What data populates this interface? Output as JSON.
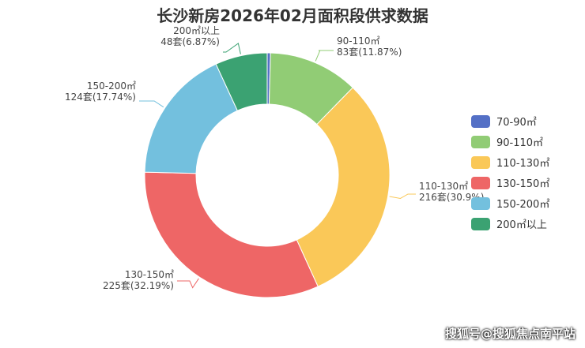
{
  "chart_data": {
    "type": "pie",
    "style": "donut",
    "title": "长沙新房2026年02月面积段供求数据",
    "unit": "套",
    "legend_position": "right",
    "slices": [
      {
        "label": "70-90㎡",
        "value": 3,
        "percent": 0.43,
        "color": "#5470c6"
      },
      {
        "label": "90-110㎡",
        "value": 83,
        "percent": 11.87,
        "color": "#91cc75"
      },
      {
        "label": "110-130㎡",
        "value": 216,
        "percent": 30.9,
        "color": "#fac858"
      },
      {
        "label": "130-150㎡",
        "value": 225,
        "percent": 32.19,
        "color": "#ee6666"
      },
      {
        "label": "150-200㎡",
        "value": 124,
        "percent": 17.74,
        "color": "#73c0de"
      },
      {
        "label": "200㎡以上",
        "value": 48,
        "percent": 6.87,
        "color": "#3ba272"
      }
    ],
    "data_labels": [
      {
        "name": "90-110㎡",
        "value_text": "83套(11.87%)"
      },
      {
        "name": "110-130㎡",
        "value_text": "216套(30.9%)"
      },
      {
        "name": "130-150㎡",
        "value_text": "225套(32.19%)"
      },
      {
        "name": "150-200㎡",
        "value_text": "124套(17.74%)"
      },
      {
        "name": "200㎡以上",
        "value_text": "48套(6.87%)"
      }
    ]
  },
  "watermark": "搜狐号@搜狐焦点南平站"
}
